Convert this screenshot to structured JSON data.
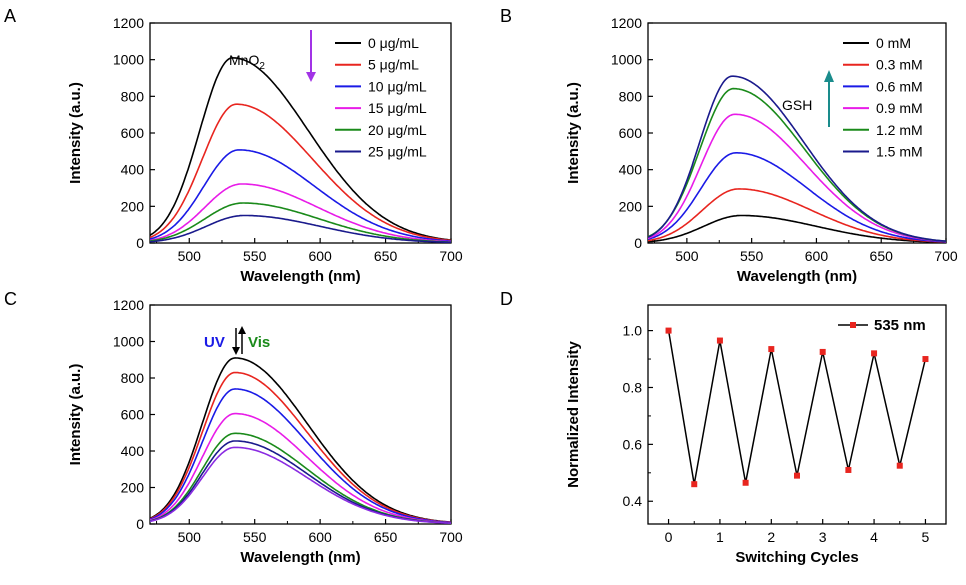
{
  "figure": {
    "panel_labels": [
      "A",
      "B",
      "C",
      "D"
    ]
  },
  "chart_data": [
    {
      "panel": "A",
      "type": "line",
      "xlabel": "Wavelength (nm)",
      "ylabel": "Intensity (a.u.)",
      "xlim": [
        470,
        700
      ],
      "ylim": [
        0,
        1200
      ],
      "xticks": [
        500,
        550,
        600,
        650,
        700
      ],
      "yticks": [
        0,
        200,
        400,
        600,
        800,
        1000,
        1200
      ],
      "legend_position": "top-right",
      "annotation": {
        "text": "MnO",
        "subscript": "2",
        "arrow": "down",
        "arrow_color": "#a233e6"
      },
      "series": [
        {
          "name": "0 μg/mL",
          "color": "#000000",
          "peak_x": 533,
          "peak_y": 1010,
          "sigma_left": 25,
          "sigma_right": 58
        },
        {
          "name": "5 μg/mL",
          "color": "#e8251f",
          "peak_x": 536,
          "peak_y": 757,
          "sigma_left": 26,
          "sigma_right": 58
        },
        {
          "name": "10 μg/mL",
          "color": "#1a1ae6",
          "peak_x": 538,
          "peak_y": 508,
          "sigma_left": 27,
          "sigma_right": 58
        },
        {
          "name": "15 μg/mL",
          "color": "#e81ce8",
          "peak_x": 540,
          "peak_y": 322,
          "sigma_left": 28,
          "sigma_right": 58
        },
        {
          "name": "20 μg/mL",
          "color": "#1a8a1a",
          "peak_x": 541,
          "peak_y": 218,
          "sigma_left": 29,
          "sigma_right": 58
        },
        {
          "name": "25 μg/mL",
          "color": "#1a1a8c",
          "peak_x": 542,
          "peak_y": 150,
          "sigma_left": 29,
          "sigma_right": 58
        }
      ]
    },
    {
      "panel": "B",
      "type": "line",
      "xlabel": "Wavelength (nm)",
      "ylabel": "Intensity (a.u.)",
      "xlim": [
        470,
        700
      ],
      "ylim": [
        0,
        1200
      ],
      "xticks": [
        500,
        550,
        600,
        650,
        700
      ],
      "yticks": [
        0,
        200,
        400,
        600,
        800,
        1000,
        1200
      ],
      "legend_position": "top-right",
      "annotation": {
        "text": "GSH",
        "arrow": "up",
        "arrow_color": "#1a8c8c"
      },
      "series": [
        {
          "name": "0 mM",
          "color": "#000000",
          "peak_x": 542,
          "peak_y": 150,
          "sigma_left": 29,
          "sigma_right": 58
        },
        {
          "name": "0.3 mM",
          "color": "#e8251f",
          "peak_x": 540,
          "peak_y": 295,
          "sigma_left": 28,
          "sigma_right": 56
        },
        {
          "name": "0.6 mM",
          "color": "#1a1ae6",
          "peak_x": 538,
          "peak_y": 492,
          "sigma_left": 27,
          "sigma_right": 55
        },
        {
          "name": "0.9 mM",
          "color": "#e81ce8",
          "peak_x": 537,
          "peak_y": 702,
          "sigma_left": 26,
          "sigma_right": 55
        },
        {
          "name": "1.2 mM",
          "color": "#1a8a1a",
          "peak_x": 536,
          "peak_y": 842,
          "sigma_left": 26,
          "sigma_right": 55
        },
        {
          "name": "1.5 mM",
          "color": "#1a1a8c",
          "peak_x": 535,
          "peak_y": 910,
          "sigma_left": 25,
          "sigma_right": 55
        }
      ]
    },
    {
      "panel": "C",
      "type": "line",
      "xlabel": "Wavelength (nm)",
      "ylabel": "Intensity (a.u.)",
      "xlim": [
        470,
        700
      ],
      "ylim": [
        0,
        1200
      ],
      "xticks": [
        500,
        550,
        600,
        650,
        700
      ],
      "yticks": [
        0,
        200,
        400,
        600,
        800,
        1000,
        1200
      ],
      "annotation": {
        "left_text": "UV",
        "left_color": "#1a1ae6",
        "right_text": "Vis",
        "right_color": "#1a8a1a"
      },
      "series": [
        {
          "name": "black",
          "color": "#000000",
          "peak_x": 535,
          "peak_y": 910,
          "sigma_left": 25,
          "sigma_right": 55
        },
        {
          "name": "red",
          "color": "#e8251f",
          "peak_x": 535,
          "peak_y": 830,
          "sigma_left": 25,
          "sigma_right": 55
        },
        {
          "name": "blue",
          "color": "#1a1ae6",
          "peak_x": 535,
          "peak_y": 740,
          "sigma_left": 25,
          "sigma_right": 55
        },
        {
          "name": "magenta",
          "color": "#e81ce8",
          "peak_x": 535,
          "peak_y": 605,
          "sigma_left": 25,
          "sigma_right": 55
        },
        {
          "name": "green",
          "color": "#1a8a1a",
          "peak_x": 535,
          "peak_y": 497,
          "sigma_left": 25,
          "sigma_right": 55
        },
        {
          "name": "navy",
          "color": "#1a1a8c",
          "peak_x": 535,
          "peak_y": 455,
          "sigma_left": 25,
          "sigma_right": 55
        },
        {
          "name": "violet",
          "color": "#8a2be2",
          "peak_x": 535,
          "peak_y": 420,
          "sigma_left": 25,
          "sigma_right": 55
        }
      ]
    },
    {
      "panel": "D",
      "type": "line",
      "xlabel": "Switching Cycles",
      "ylabel": "Normalized Intensity",
      "xlim": [
        -0.4,
        5.4
      ],
      "ylim": [
        0.32,
        1.09
      ],
      "xticks": [
        0,
        1,
        2,
        3,
        4,
        5
      ],
      "yticks": [
        0.4,
        0.6,
        0.8,
        1.0
      ],
      "ytick_labels": [
        "0.4",
        "0.6",
        "0.8",
        "1.0"
      ],
      "legend_position": "top-right",
      "series": [
        {
          "name": "535 nm",
          "line_color": "#000000",
          "marker_color": "#e8251f",
          "x": [
            0,
            0.5,
            1,
            1.5,
            2,
            2.5,
            3,
            3.5,
            4,
            4.5,
            5
          ],
          "y": [
            1.0,
            0.46,
            0.965,
            0.465,
            0.935,
            0.49,
            0.925,
            0.51,
            0.92,
            0.525,
            0.9
          ]
        }
      ]
    }
  ]
}
